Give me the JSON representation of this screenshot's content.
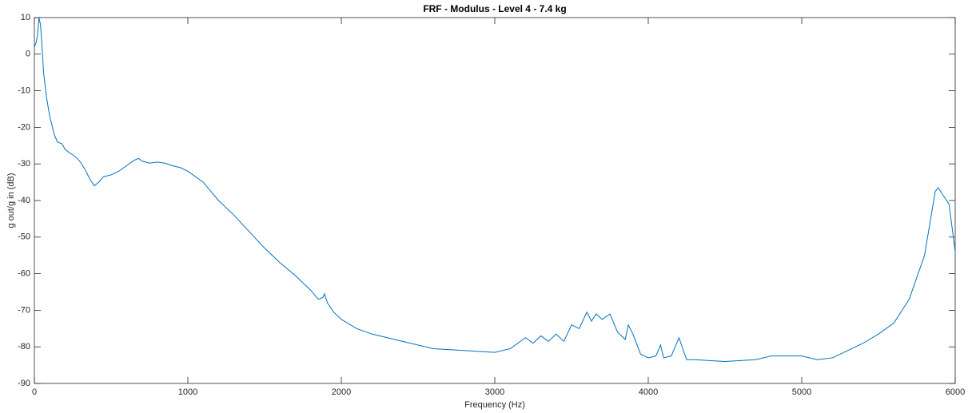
{
  "chart_data": {
    "type": "line",
    "title": "FRF - Modulus - Level 4 - 7.4 kg",
    "x_label": "Frequency (Hz)",
    "y_label": "g out/g in (dB)",
    "xlim": [
      0,
      6000
    ],
    "ylim": [
      -90,
      10
    ],
    "xticks": [
      0,
      1000,
      2000,
      3000,
      4000,
      5000,
      6000
    ],
    "yticks": [
      -90,
      -80,
      -70,
      -60,
      -50,
      -40,
      -30,
      -20,
      -10,
      0,
      10
    ],
    "grid": false,
    "series": [
      {
        "name": "FRF",
        "color": "#0072bd",
        "x": [
          0,
          10,
          20,
          30,
          40,
          50,
          60,
          80,
          100,
          130,
          150,
          180,
          200,
          230,
          250,
          280,
          300,
          330,
          360,
          390,
          420,
          450,
          500,
          550,
          600,
          650,
          680,
          700,
          750,
          800,
          850,
          900,
          950,
          1000,
          1100,
          1200,
          1300,
          1400,
          1500,
          1600,
          1700,
          1800,
          1850,
          1880,
          1890,
          1910,
          1950,
          2000,
          2100,
          2200,
          2400,
          2600,
          2800,
          3000,
          3100,
          3200,
          3250,
          3300,
          3350,
          3400,
          3450,
          3500,
          3550,
          3600,
          3630,
          3660,
          3700,
          3750,
          3800,
          3850,
          3870,
          3900,
          3950,
          4000,
          4050,
          4080,
          4100,
          4150,
          4200,
          4250,
          4300,
          4500,
          4700,
          4800,
          5000,
          5100,
          5200,
          5300,
          5400,
          5500,
          5600,
          5700,
          5800,
          5870,
          5890,
          5920,
          5960,
          6000
        ],
        "values": [
          2,
          3,
          5,
          10,
          8,
          2,
          -5,
          -12,
          -17,
          -22,
          -24,
          -24.5,
          -26,
          -27,
          -27.5,
          -28.5,
          -29.5,
          -31.5,
          -34,
          -36,
          -35,
          -33.5,
          -33,
          -32,
          -30.5,
          -29,
          -28.5,
          -29.2,
          -29.8,
          -29.5,
          -29.8,
          -30.5,
          -31,
          -32,
          -35,
          -40,
          -44,
          -48.5,
          -53,
          -57,
          -60.5,
          -64.5,
          -67,
          -66.5,
          -65.5,
          -68,
          -70.5,
          -72.5,
          -75,
          -76.5,
          -78.5,
          -80.5,
          -81,
          -81.5,
          -80.5,
          -77.5,
          -79,
          -77,
          -78.5,
          -76.5,
          -78.5,
          -74,
          -75,
          -70.5,
          -73,
          -71,
          -72.5,
          -71,
          -76,
          -78,
          -74,
          -76.5,
          -82,
          -83,
          -82.5,
          -79.5,
          -83,
          -82.5,
          -77.5,
          -83.5,
          -83.5,
          -84,
          -83.5,
          -82.5,
          -82.5,
          -83.5,
          -83,
          -81,
          -79,
          -76.5,
          -73.5,
          -67,
          -55,
          -37.5,
          -36.5,
          -38.5,
          -41,
          -54
        ]
      }
    ]
  }
}
